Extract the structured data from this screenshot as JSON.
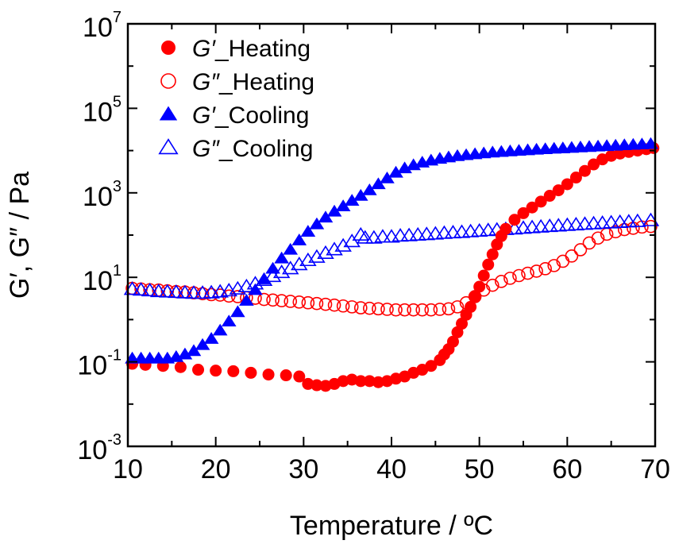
{
  "chart_data": {
    "type": "scatter",
    "title": "",
    "xlabel": "Temperature / ºC",
    "ylabel": "G′, G″ / Pa",
    "xlim": [
      10,
      70
    ],
    "ylim": [
      0.001,
      10000000
    ],
    "yscale": "log",
    "grid": false,
    "legend_position": "top-left",
    "x_ticks": [
      10,
      20,
      30,
      40,
      50,
      60,
      70
    ],
    "x_tick_labels": [
      "10",
      "20",
      "30",
      "40",
      "50",
      "60",
      "70"
    ],
    "y_tick_labels": [
      {
        "base": "10",
        "exp": "-3",
        "value": 0.001
      },
      {
        "base": "10",
        "exp": "-1",
        "value": 0.1
      },
      {
        "base": "10",
        "exp": "1",
        "value": 10
      },
      {
        "base": "10",
        "exp": "3",
        "value": 1000
      },
      {
        "base": "10",
        "exp": "5",
        "value": 100000
      },
      {
        "base": "10",
        "exp": "7",
        "value": 10000000
      }
    ],
    "series": [
      {
        "name": "G′_Heating",
        "label_italic": "G′",
        "label_rest": "_Heating",
        "color": "#ff0000",
        "marker": "circle",
        "filled": true,
        "points": [
          [
            10.5,
            0.09
          ],
          [
            12,
            0.085
          ],
          [
            14,
            0.08
          ],
          [
            16,
            0.075
          ],
          [
            18,
            0.065
          ],
          [
            20,
            0.062
          ],
          [
            22,
            0.06
          ],
          [
            24,
            0.055
          ],
          [
            26,
            0.05
          ],
          [
            28,
            0.048
          ],
          [
            29.5,
            0.045
          ],
          [
            30.5,
            0.03
          ],
          [
            31.5,
            0.028
          ],
          [
            32.5,
            0.027
          ],
          [
            33.5,
            0.03
          ],
          [
            34.5,
            0.035
          ],
          [
            35.5,
            0.038
          ],
          [
            36.5,
            0.035
          ],
          [
            37.5,
            0.035
          ],
          [
            38.5,
            0.033
          ],
          [
            39.5,
            0.035
          ],
          [
            40.5,
            0.04
          ],
          [
            41.5,
            0.045
          ],
          [
            42.5,
            0.055
          ],
          [
            43.5,
            0.065
          ],
          [
            44.5,
            0.08
          ],
          [
            45.5,
            0.11
          ],
          [
            46,
            0.15
          ],
          [
            46.5,
            0.2
          ],
          [
            47,
            0.3
          ],
          [
            47.5,
            0.5
          ],
          [
            48,
            0.8
          ],
          [
            48.5,
            1.3
          ],
          [
            49,
            2
          ],
          [
            49.5,
            3.5
          ],
          [
            50,
            6
          ],
          [
            50.5,
            11
          ],
          [
            51,
            20
          ],
          [
            51.5,
            35
          ],
          [
            52,
            60
          ],
          [
            52.5,
            95
          ],
          [
            53,
            140
          ],
          [
            54,
            230
          ],
          [
            55,
            330
          ],
          [
            56,
            450
          ],
          [
            57,
            620
          ],
          [
            58,
            850
          ],
          [
            59,
            1150
          ],
          [
            60,
            1600
          ],
          [
            61,
            2300
          ],
          [
            62,
            3300
          ],
          [
            63,
            4700
          ],
          [
            64,
            6200
          ],
          [
            65,
            7500
          ],
          [
            66,
            8500
          ],
          [
            67,
            9300
          ],
          [
            68,
            10000
          ],
          [
            69,
            10800
          ],
          [
            69.8,
            11500
          ]
        ]
      },
      {
        "name": "G″_Heating",
        "label_italic": "G″",
        "label_rest": "_Heating",
        "color": "#ff0000",
        "marker": "circle",
        "filled": false,
        "points": [
          [
            10.5,
            5.5
          ],
          [
            11.5,
            5.3
          ],
          [
            12.5,
            5.1
          ],
          [
            13.5,
            5
          ],
          [
            14.5,
            4.8
          ],
          [
            15.5,
            4.6
          ],
          [
            16.5,
            4.5
          ],
          [
            17.5,
            4.3
          ],
          [
            18.5,
            4.1
          ],
          [
            19.5,
            3.9
          ],
          [
            20.5,
            3.8
          ],
          [
            21.5,
            3.6
          ],
          [
            22.5,
            3.5
          ],
          [
            23.5,
            3.3
          ],
          [
            24.5,
            3.2
          ],
          [
            25.5,
            3
          ],
          [
            26.5,
            2.9
          ],
          [
            27.5,
            2.8
          ],
          [
            28.5,
            2.7
          ],
          [
            29.5,
            2.6
          ],
          [
            30.5,
            2.5
          ],
          [
            31.5,
            2.4
          ],
          [
            32.5,
            2.3
          ],
          [
            33.5,
            2.2
          ],
          [
            34.5,
            2.1
          ],
          [
            35.5,
            2
          ],
          [
            36.5,
            1.9
          ],
          [
            37.5,
            1.85
          ],
          [
            38.5,
            1.8
          ],
          [
            39.5,
            1.75
          ],
          [
            40.5,
            1.7
          ],
          [
            41.5,
            1.7
          ],
          [
            42.5,
            1.7
          ],
          [
            43.5,
            1.7
          ],
          [
            44.5,
            1.7
          ],
          [
            45.5,
            1.75
          ],
          [
            46.5,
            1.8
          ],
          [
            47.5,
            2
          ],
          [
            48.5,
            2.5
          ],
          [
            49.5,
            3.5
          ],
          [
            50.5,
            5
          ],
          [
            51.5,
            6.5
          ],
          [
            52.5,
            8
          ],
          [
            53.5,
            9.5
          ],
          [
            54.5,
            11
          ],
          [
            55.5,
            12.5
          ],
          [
            56.5,
            14
          ],
          [
            57.5,
            16
          ],
          [
            58.5,
            19
          ],
          [
            59.5,
            24
          ],
          [
            60.5,
            32
          ],
          [
            61.5,
            45
          ],
          [
            62.5,
            65
          ],
          [
            63.5,
            85
          ],
          [
            64.5,
            105
          ],
          [
            65.5,
            120
          ],
          [
            66.5,
            135
          ],
          [
            67.5,
            145
          ],
          [
            68.5,
            155
          ],
          [
            69.5,
            160
          ]
        ]
      },
      {
        "name": "G′_Cooling",
        "label_italic": "G′",
        "label_rest": "_Cooling",
        "color": "#0000ff",
        "marker": "triangle",
        "filled": true,
        "points": [
          [
            10.5,
            0.12
          ],
          [
            11.5,
            0.12
          ],
          [
            12.5,
            0.12
          ],
          [
            13.5,
            0.12
          ],
          [
            14.5,
            0.12
          ],
          [
            15.5,
            0.13
          ],
          [
            16.5,
            0.15
          ],
          [
            17.5,
            0.18
          ],
          [
            18.5,
            0.25
          ],
          [
            19.5,
            0.35
          ],
          [
            20.5,
            0.55
          ],
          [
            21.5,
            0.9
          ],
          [
            22.5,
            1.5
          ],
          [
            23.5,
            2.8
          ],
          [
            24.5,
            5
          ],
          [
            25.5,
            9
          ],
          [
            26.5,
            16
          ],
          [
            27.5,
            28
          ],
          [
            28.5,
            45
          ],
          [
            29.5,
            75
          ],
          [
            30.5,
            120
          ],
          [
            31.5,
            180
          ],
          [
            32.5,
            260
          ],
          [
            33.5,
            360
          ],
          [
            34.5,
            480
          ],
          [
            35.5,
            650
          ],
          [
            36.5,
            850
          ],
          [
            37.5,
            1150
          ],
          [
            38.5,
            1600
          ],
          [
            39.5,
            2200
          ],
          [
            40.5,
            3000
          ],
          [
            41.5,
            3800
          ],
          [
            42.5,
            4500
          ],
          [
            43.5,
            5200
          ],
          [
            44.5,
            5800
          ],
          [
            45.5,
            6400
          ],
          [
            46.5,
            6900
          ],
          [
            47.5,
            7400
          ],
          [
            48.5,
            7800
          ],
          [
            49.5,
            8200
          ],
          [
            50.5,
            8600
          ],
          [
            51.5,
            9000
          ],
          [
            52.5,
            9300
          ],
          [
            53.5,
            9600
          ],
          [
            54.5,
            9900
          ],
          [
            55.5,
            10200
          ],
          [
            56.5,
            10500
          ],
          [
            57.5,
            10800
          ],
          [
            58.5,
            11100
          ],
          [
            59.5,
            11300
          ],
          [
            60.5,
            11600
          ],
          [
            61.5,
            11900
          ],
          [
            62.5,
            12200
          ],
          [
            63.5,
            12500
          ],
          [
            64.5,
            12800
          ],
          [
            65.5,
            13100
          ],
          [
            66.5,
            13400
          ],
          [
            67.5,
            13700
          ],
          [
            68.5,
            14000
          ],
          [
            69.5,
            14300
          ]
        ]
      },
      {
        "name": "G″_Cooling",
        "label_italic": "G″",
        "label_rest": "_Cooling",
        "color": "#0000ff",
        "marker": "triangle",
        "filled": false,
        "points": [
          [
            10.5,
            5.2
          ],
          [
            11.5,
            5
          ],
          [
            12.5,
            4.8
          ],
          [
            13.5,
            4.6
          ],
          [
            14.5,
            4.5
          ],
          [
            15.5,
            4.4
          ],
          [
            16.5,
            4.3
          ],
          [
            17.5,
            4.2
          ],
          [
            18.5,
            4.2
          ],
          [
            19.5,
            4.3
          ],
          [
            20.5,
            4.5
          ],
          [
            21.5,
            4.8
          ],
          [
            22.5,
            5.3
          ],
          [
            23.5,
            6
          ],
          [
            24.5,
            7
          ],
          [
            25.5,
            8.5
          ],
          [
            26.5,
            10.5
          ],
          [
            27.5,
            13
          ],
          [
            28.5,
            16
          ],
          [
            29.5,
            20
          ],
          [
            30.5,
            25
          ],
          [
            31.5,
            30
          ],
          [
            32.5,
            37
          ],
          [
            33.5,
            45
          ],
          [
            34.5,
            55
          ],
          [
            35.5,
            70
          ],
          [
            36.5,
            100
          ],
          [
            37,
            85
          ],
          [
            38,
            85
          ],
          [
            39,
            90
          ],
          [
            40,
            90
          ],
          [
            41,
            95
          ],
          [
            42,
            97
          ],
          [
            43,
            100
          ],
          [
            44,
            103
          ],
          [
            45,
            106
          ],
          [
            46,
            110
          ],
          [
            47,
            113
          ],
          [
            48,
            116
          ],
          [
            49,
            120
          ],
          [
            50,
            124
          ],
          [
            51,
            128
          ],
          [
            52,
            132
          ],
          [
            53,
            136
          ],
          [
            54,
            140
          ],
          [
            55,
            145
          ],
          [
            56,
            150
          ],
          [
            57,
            155
          ],
          [
            58,
            160
          ],
          [
            59,
            165
          ],
          [
            60,
            170
          ],
          [
            61,
            175
          ],
          [
            62,
            180
          ],
          [
            63,
            185
          ],
          [
            64,
            190
          ],
          [
            65,
            195
          ],
          [
            66,
            200
          ],
          [
            67,
            205
          ],
          [
            68,
            210
          ],
          [
            69.5,
            220
          ]
        ]
      }
    ]
  }
}
